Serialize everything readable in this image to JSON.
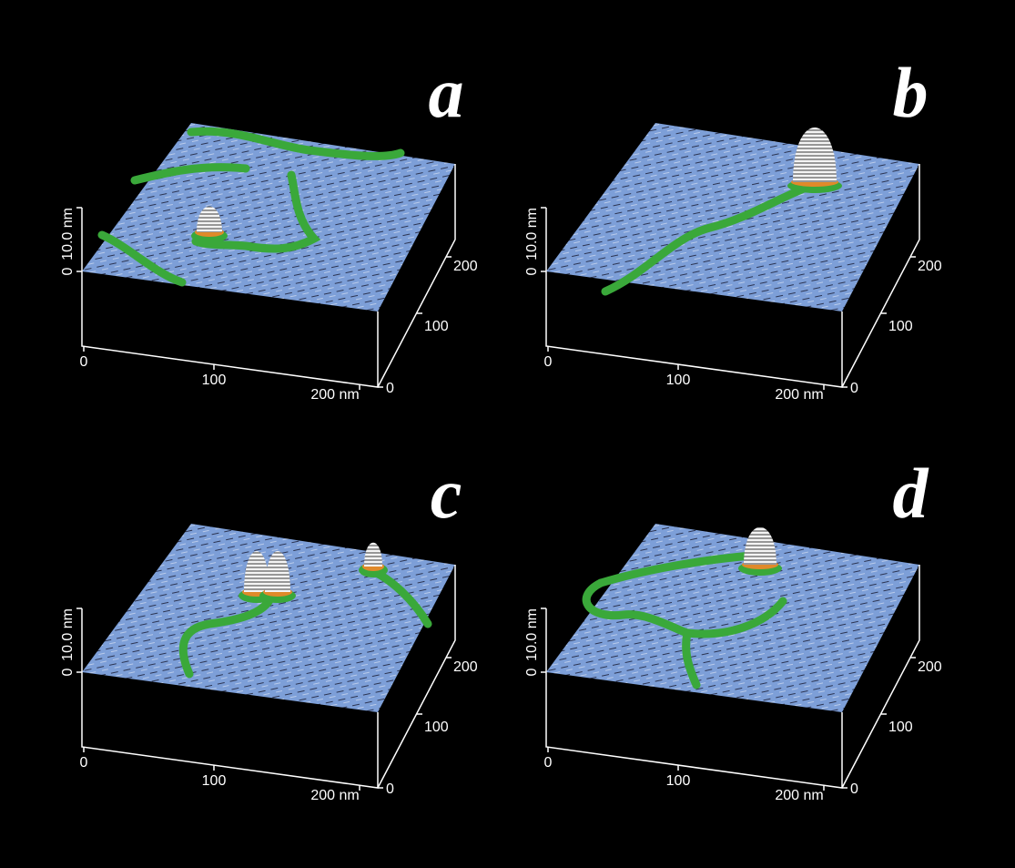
{
  "panels": [
    {
      "label": "a",
      "z_ticks": [
        "0",
        "10.0 nm"
      ],
      "x_ticks": [
        "0",
        "100",
        "200 nm"
      ],
      "y_ticks": [
        "0",
        "100",
        "200"
      ]
    },
    {
      "label": "b",
      "z_ticks": [
        "0",
        "10.0 nm"
      ],
      "x_ticks": [
        "0",
        "100",
        "200 nm"
      ],
      "y_ticks": [
        "0",
        "100",
        "200"
      ]
    },
    {
      "label": "c",
      "z_ticks": [
        "0",
        "10.0 nm"
      ],
      "x_ticks": [
        "0",
        "100",
        "200 nm"
      ],
      "y_ticks": [
        "0",
        "100",
        "200"
      ]
    },
    {
      "label": "d",
      "z_ticks": [
        "0",
        "10.0 nm"
      ],
      "x_ticks": [
        "0",
        "100",
        "200 nm"
      ],
      "y_ticks": [
        "0",
        "100",
        "200"
      ]
    }
  ]
}
